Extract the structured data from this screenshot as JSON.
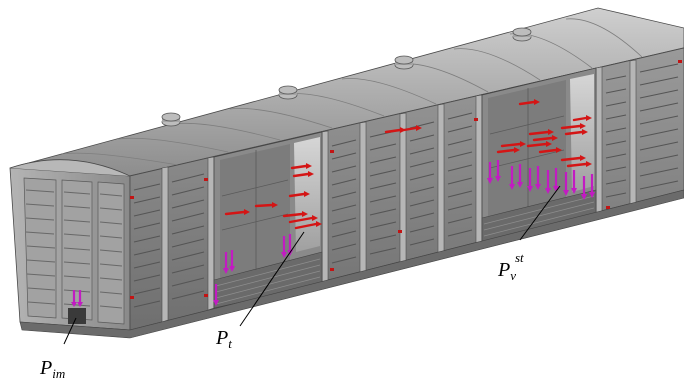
{
  "labels": {
    "p_im": {
      "base": "P",
      "sub": "im"
    },
    "p_t": {
      "base": "P",
      "sub": "t"
    },
    "p_v_st": {
      "base": "P",
      "sub": "v",
      "sup": "st"
    }
  },
  "colors": {
    "body": "#8e8e8e",
    "body_dark": "#5a5a5a",
    "roof": "#a9a9a9",
    "roof_light": "#c8c8c8",
    "panel": "#767676",
    "force_red": "#d41515",
    "force_magenta": "#c21bc2"
  }
}
